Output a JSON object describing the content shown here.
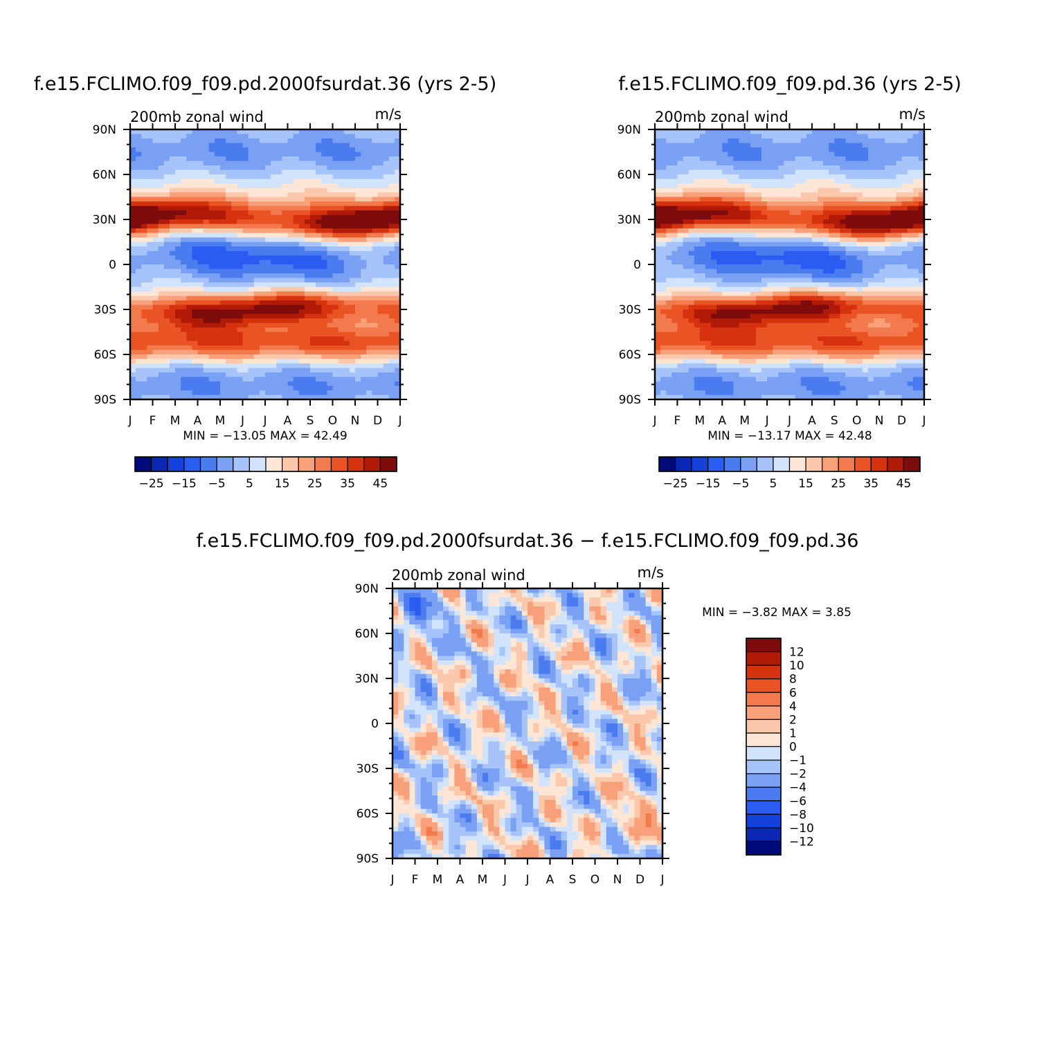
{
  "chart_data": [
    {
      "type": "heatmap",
      "id": "case1",
      "title": "f.e15.FCLIMO.f09_f09.pd.2000fsurdat.36 (yrs 2-5)",
      "subtitle_left": "200mb zonal wind",
      "subtitle_right": "m/s",
      "x_ticks": [
        "J",
        "F",
        "M",
        "A",
        "M",
        "J",
        "J",
        "A",
        "S",
        "O",
        "N",
        "D",
        "J"
      ],
      "y_ticks": [
        "90N",
        "60N",
        "30N",
        "0",
        "30S",
        "60S",
        "90S"
      ],
      "stats": "MIN = −13.05 MAX =   42.49",
      "colorbar": {
        "orientation": "horizontal",
        "levels": [
          -30,
          -25,
          -20,
          -15,
          -10,
          -5,
          0,
          5,
          10,
          15,
          20,
          25,
          30,
          35,
          40,
          45
        ],
        "labels": [
          "−25",
          "−15",
          "−5",
          "5",
          "15",
          "25",
          "35",
          "45"
        ]
      },
      "features": {
        "nh_jet_lat": 30,
        "nh_jet_max": 42,
        "sh_jet_lat": -30,
        "sh_jet_max": 42,
        "eq_easterly_min": -13
      }
    },
    {
      "type": "heatmap",
      "id": "case2",
      "title": "f.e15.FCLIMO.f09_f09.pd.36 (yrs 2-5)",
      "subtitle_left": "200mb zonal wind",
      "subtitle_right": "m/s",
      "x_ticks": [
        "J",
        "F",
        "M",
        "A",
        "M",
        "J",
        "J",
        "A",
        "S",
        "O",
        "N",
        "D",
        "J"
      ],
      "y_ticks": [
        "90N",
        "60N",
        "30N",
        "0",
        "30S",
        "60S",
        "90S"
      ],
      "stats": "MIN = −13.17 MAX =   42.48",
      "colorbar": {
        "orientation": "horizontal",
        "levels": [
          -30,
          -25,
          -20,
          -15,
          -10,
          -5,
          0,
          5,
          10,
          15,
          20,
          25,
          30,
          35,
          40,
          45
        ],
        "labels": [
          "−25",
          "−15",
          "−5",
          "5",
          "15",
          "25",
          "35",
          "45"
        ]
      }
    },
    {
      "type": "heatmap",
      "id": "diff",
      "title": "f.e15.FCLIMO.f09_f09.pd.2000fsurdat.36 − f.e15.FCLIMO.f09_f09.pd.36",
      "subtitle_left": "200mb zonal wind",
      "subtitle_right": "m/s",
      "x_ticks": [
        "J",
        "F",
        "M",
        "A",
        "M",
        "J",
        "J",
        "A",
        "S",
        "O",
        "N",
        "D",
        "J"
      ],
      "y_ticks": [
        "90N",
        "60N",
        "30N",
        "0",
        "30S",
        "60S",
        "90S"
      ],
      "stats": "MIN =    −3.82 MAX =    3.85",
      "colorbar": {
        "orientation": "vertical",
        "levels": [
          12,
          10,
          8,
          6,
          4,
          2,
          1,
          0,
          -1,
          -2,
          -4,
          -6,
          -8,
          -10,
          -12
        ],
        "labels": [
          "12",
          "10",
          "8",
          "6",
          "4",
          "2",
          "1",
          "0",
          "−1",
          "−2",
          "−4",
          "−6",
          "−8",
          "−10",
          "−12"
        ]
      }
    }
  ],
  "palette": {
    "mean": [
      "#000a7a",
      "#0a28b4",
      "#1440dc",
      "#2a5cf2",
      "#4a7cf0",
      "#7aa0f4",
      "#a6c4fa",
      "#d2e4fc",
      "#fde6d6",
      "#fcc8ac",
      "#f8a07a",
      "#f27a4c",
      "#ea5424",
      "#d63210",
      "#b01a06",
      "#7e0c0c"
    ],
    "diff": [
      "#000a7a",
      "#0a28b4",
      "#1440dc",
      "#2a5cf2",
      "#4a7cf0",
      "#7aa0f4",
      "#a6c4fa",
      "#d2e4fc",
      "#fde6d6",
      "#fcc8ac",
      "#f8a07a",
      "#f27a4c",
      "#ea5424",
      "#d63210",
      "#b01a06",
      "#7e0c0c"
    ]
  }
}
